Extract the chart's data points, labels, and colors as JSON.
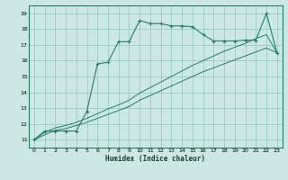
{
  "xlabel": "Humidex (Indice chaleur)",
  "bg_color": "#cce8e4",
  "grid_color": "#99ccc4",
  "line_color": "#2a7a6a",
  "xlim": [
    -0.5,
    23.5
  ],
  "ylim": [
    10.5,
    19.5
  ],
  "xticks": [
    0,
    1,
    2,
    3,
    4,
    5,
    6,
    7,
    8,
    9,
    10,
    11,
    12,
    13,
    14,
    15,
    16,
    17,
    18,
    19,
    20,
    21,
    22,
    23
  ],
  "yticks": [
    11,
    12,
    13,
    14,
    15,
    16,
    17,
    18,
    19
  ],
  "line1_x": [
    0,
    1,
    2,
    3,
    4,
    5,
    6,
    7,
    8,
    9,
    10,
    11,
    12,
    13,
    14,
    15,
    16,
    17,
    18,
    19,
    20,
    21,
    22,
    23
  ],
  "line1_y": [
    11.0,
    11.55,
    11.55,
    11.55,
    11.55,
    12.8,
    15.8,
    15.9,
    17.2,
    17.2,
    18.55,
    18.35,
    18.35,
    18.2,
    18.2,
    18.15,
    17.65,
    17.25,
    17.25,
    17.25,
    17.3,
    17.3,
    19.0,
    16.5
  ],
  "line2_x": [
    0,
    1,
    2,
    3,
    4,
    5,
    6,
    7,
    8,
    9,
    10,
    11,
    12,
    13,
    14,
    15,
    16,
    17,
    18,
    19,
    20,
    21,
    22,
    23
  ],
  "line2_y": [
    11.0,
    11.3,
    11.6,
    11.7,
    11.9,
    12.1,
    12.35,
    12.6,
    12.85,
    13.1,
    13.5,
    13.8,
    14.1,
    14.4,
    14.7,
    15.0,
    15.3,
    15.55,
    15.8,
    16.05,
    16.3,
    16.55,
    16.8,
    16.5
  ],
  "line3_x": [
    0,
    1,
    2,
    3,
    4,
    5,
    6,
    7,
    8,
    9,
    10,
    11,
    12,
    13,
    14,
    15,
    16,
    17,
    18,
    19,
    20,
    21,
    22,
    23
  ],
  "line3_y": [
    11.0,
    11.45,
    11.75,
    11.9,
    12.1,
    12.35,
    12.65,
    12.95,
    13.2,
    13.5,
    13.95,
    14.3,
    14.65,
    15.0,
    15.35,
    15.7,
    16.0,
    16.3,
    16.6,
    16.85,
    17.1,
    17.4,
    17.65,
    16.5
  ]
}
